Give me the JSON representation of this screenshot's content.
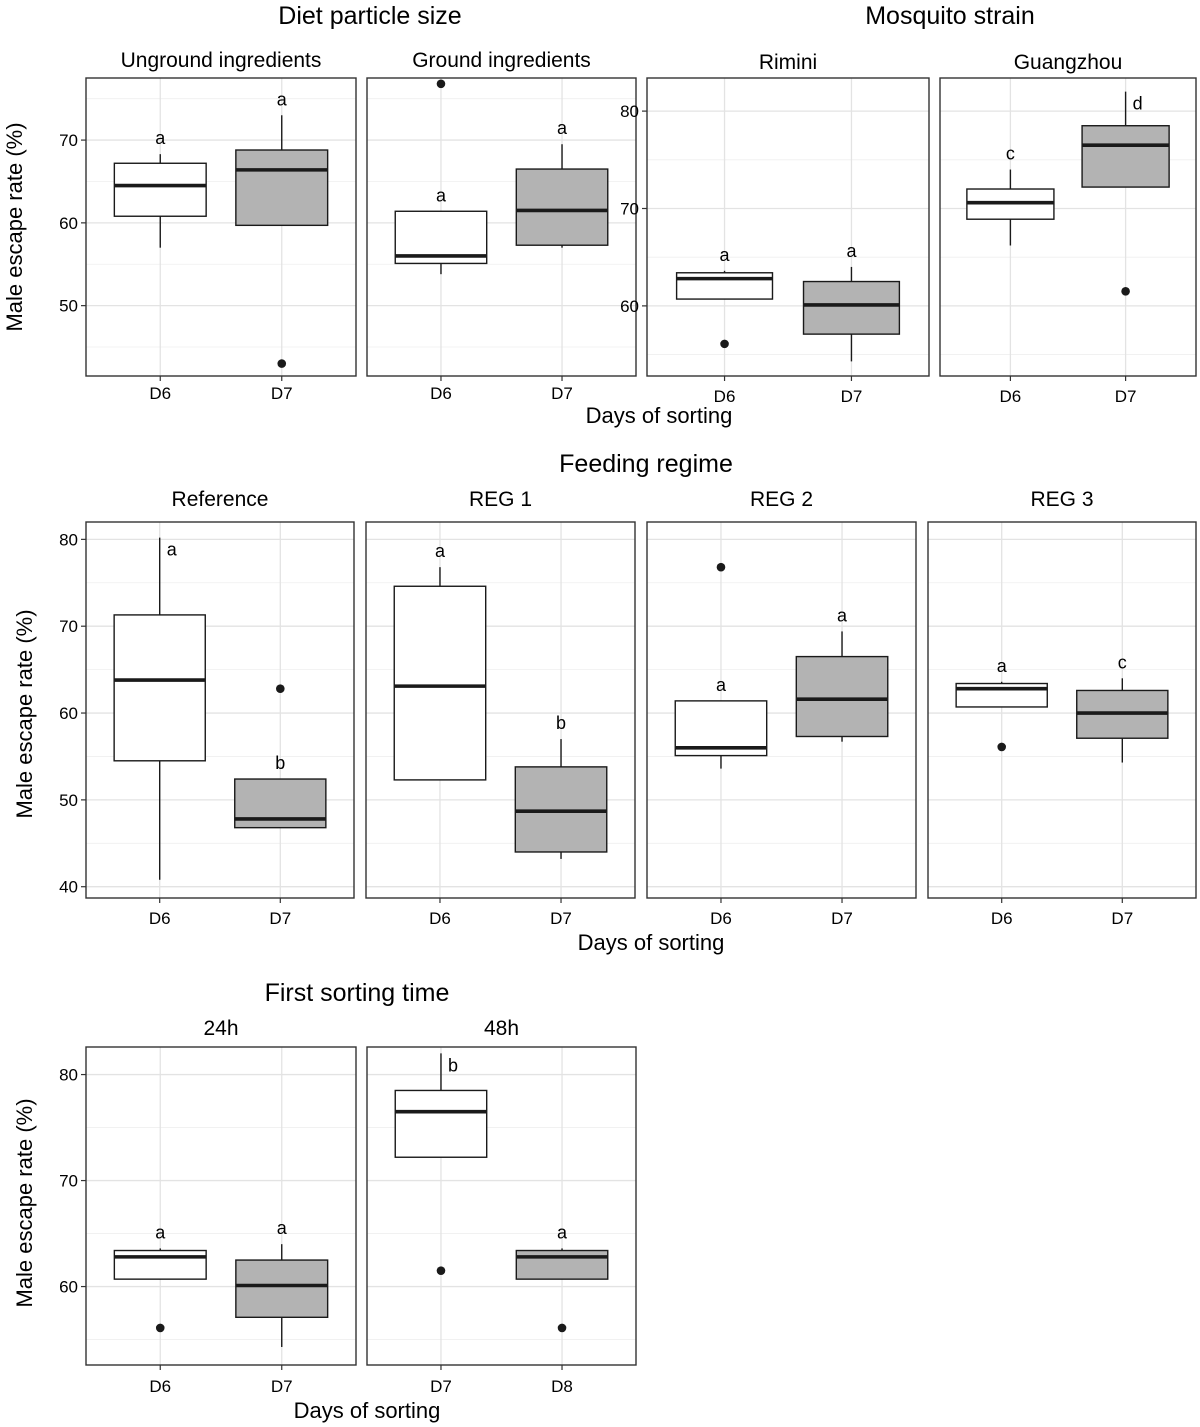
{
  "figure": {
    "shared_ylabel": "Male escape rate (%)",
    "shared_xlabel": "Days of sorting"
  },
  "colors": {
    "fill_early": "#ffffff",
    "fill_late": "#b3b3b3"
  },
  "chart_data": [
    {
      "type": "box",
      "title": "Diet particle size",
      "ylabel": "Male escape rate (%)",
      "xlabel": "Days of sorting",
      "ylim": [
        41.5,
        77.5
      ],
      "yticks": [
        50,
        60,
        70
      ],
      "panels": [
        {
          "title": "Unground ingredients",
          "categories": [
            "D6",
            "D7"
          ],
          "boxes": [
            {
              "label": "D6",
              "whisker_low": 57,
              "q1": 60.8,
              "median": 64.5,
              "q3": 67.2,
              "whisker_high": 68.3,
              "outliers": [],
              "letter": "a"
            },
            {
              "label": "D7",
              "whisker_low": 59.7,
              "q1": 59.7,
              "median": 66.4,
              "q3": 68.8,
              "whisker_high": 73,
              "outliers": [
                43
              ],
              "letter": "a"
            }
          ]
        },
        {
          "title": "Ground ingredients",
          "categories": [
            "D6",
            "D7"
          ],
          "boxes": [
            {
              "label": "D6",
              "whisker_low": 53.8,
              "q1": 55.1,
              "median": 56,
              "q3": 61.4,
              "whisker_high": 61.4,
              "outliers": [
                76.8
              ],
              "letter": "a"
            },
            {
              "label": "D7",
              "whisker_low": 57,
              "q1": 57.3,
              "median": 61.5,
              "q3": 66.5,
              "whisker_high": 69.5,
              "outliers": [],
              "letter": "a"
            }
          ]
        }
      ]
    },
    {
      "type": "box",
      "title": "Mosquito strain",
      "ylabel": "",
      "xlabel": "",
      "ylim": [
        52.8,
        83.4
      ],
      "yticks": [
        60,
        70,
        80
      ],
      "panels": [
        {
          "title": "Rimini",
          "categories": [
            "D6",
            "D7"
          ],
          "boxes": [
            {
              "label": "D6",
              "whisker_low": 60.7,
              "q1": 60.7,
              "median": 62.8,
              "q3": 63.4,
              "whisker_high": 63.6,
              "outliers": [
                56.1
              ],
              "letter": "a"
            },
            {
              "label": "D7",
              "whisker_low": 54.3,
              "q1": 57.1,
              "median": 60.1,
              "q3": 62.5,
              "whisker_high": 64,
              "outliers": [],
              "letter": "a"
            }
          ]
        },
        {
          "title": "Guangzhou",
          "categories": [
            "D6",
            "D7"
          ],
          "boxes": [
            {
              "label": "D6",
              "whisker_low": 66.2,
              "q1": 68.9,
              "median": 70.6,
              "q3": 72,
              "whisker_high": 74,
              "outliers": [],
              "letter": "c"
            },
            {
              "label": "D7",
              "whisker_low": 72.2,
              "q1": 72.2,
              "median": 76.5,
              "q3": 78.5,
              "whisker_high": 82,
              "outliers": [
                61.5
              ],
              "letter": "d"
            }
          ]
        }
      ]
    },
    {
      "type": "box",
      "title": "Feeding regime",
      "ylabel": "Male escape rate (%)",
      "xlabel": "Days of sorting",
      "ylim": [
        38.7,
        82
      ],
      "yticks": [
        40,
        50,
        60,
        70,
        80
      ],
      "panels": [
        {
          "title": "Reference",
          "categories": [
            "D6",
            "D7"
          ],
          "boxes": [
            {
              "label": "D6",
              "whisker_low": 40.8,
              "q1": 54.5,
              "median": 63.8,
              "q3": 71.3,
              "whisker_high": 80.2,
              "outliers": [],
              "letter": "a"
            },
            {
              "label": "D7",
              "whisker_low": 46.8,
              "q1": 46.8,
              "median": 47.8,
              "q3": 52.4,
              "whisker_high": 52.4,
              "outliers": [
                62.8
              ],
              "letter": "b"
            }
          ]
        },
        {
          "title": "REG 1",
          "categories": [
            "D6",
            "D7"
          ],
          "boxes": [
            {
              "label": "D6",
              "whisker_low": 52.3,
              "q1": 52.3,
              "median": 63.1,
              "q3": 74.6,
              "whisker_high": 76.8,
              "outliers": [],
              "letter": "a"
            },
            {
              "label": "D7",
              "whisker_low": 43.2,
              "q1": 44,
              "median": 48.7,
              "q3": 53.8,
              "whisker_high": 57,
              "outliers": [],
              "letter": "b"
            }
          ]
        },
        {
          "title": "REG 2",
          "categories": [
            "D6",
            "D7"
          ],
          "boxes": [
            {
              "label": "D6",
              "whisker_low": 53.6,
              "q1": 55.1,
              "median": 56,
              "q3": 61.4,
              "whisker_high": 61.4,
              "outliers": [
                76.8
              ],
              "letter": "a"
            },
            {
              "label": "D7",
              "whisker_low": 56.7,
              "q1": 57.3,
              "median": 61.6,
              "q3": 66.5,
              "whisker_high": 69.4,
              "outliers": [],
              "letter": "a"
            }
          ]
        },
        {
          "title": "REG 3",
          "categories": [
            "D6",
            "D7"
          ],
          "boxes": [
            {
              "label": "D6",
              "whisker_low": 60.7,
              "q1": 60.7,
              "median": 62.8,
              "q3": 63.4,
              "whisker_high": 63.6,
              "outliers": [
                56.1
              ],
              "letter": "a"
            },
            {
              "label": "D7",
              "whisker_low": 54.3,
              "q1": 57.1,
              "median": 60,
              "q3": 62.6,
              "whisker_high": 64,
              "outliers": [],
              "letter": "c"
            }
          ]
        }
      ]
    },
    {
      "type": "box",
      "title": "First sorting time",
      "ylabel": "Male escape rate (%)",
      "xlabel": "Days of sorting",
      "ylim": [
        52.6,
        82.6
      ],
      "yticks": [
        60,
        70,
        80
      ],
      "panels": [
        {
          "title": "24h",
          "categories": [
            "D6",
            "D7"
          ],
          "boxes": [
            {
              "label": "D6",
              "whisker_low": 60.7,
              "q1": 60.7,
              "median": 62.8,
              "q3": 63.4,
              "whisker_high": 63.6,
              "outliers": [
                56.1
              ],
              "letter": "a"
            },
            {
              "label": "D7",
              "whisker_low": 54.3,
              "q1": 57.1,
              "median": 60.1,
              "q3": 62.5,
              "whisker_high": 64,
              "outliers": [],
              "letter": "a"
            }
          ]
        },
        {
          "title": "48h",
          "categories": [
            "D7",
            "D8"
          ],
          "boxes": [
            {
              "label": "D7",
              "whisker_low": 72.2,
              "q1": 72.2,
              "median": 76.5,
              "q3": 78.5,
              "whisker_high": 82,
              "outliers": [
                61.5
              ],
              "letter": "b"
            },
            {
              "label": "D8",
              "whisker_low": 60.7,
              "q1": 60.7,
              "median": 62.8,
              "q3": 63.4,
              "whisker_high": 63.6,
              "outliers": [
                56.1
              ],
              "letter": "a"
            }
          ]
        }
      ]
    }
  ]
}
